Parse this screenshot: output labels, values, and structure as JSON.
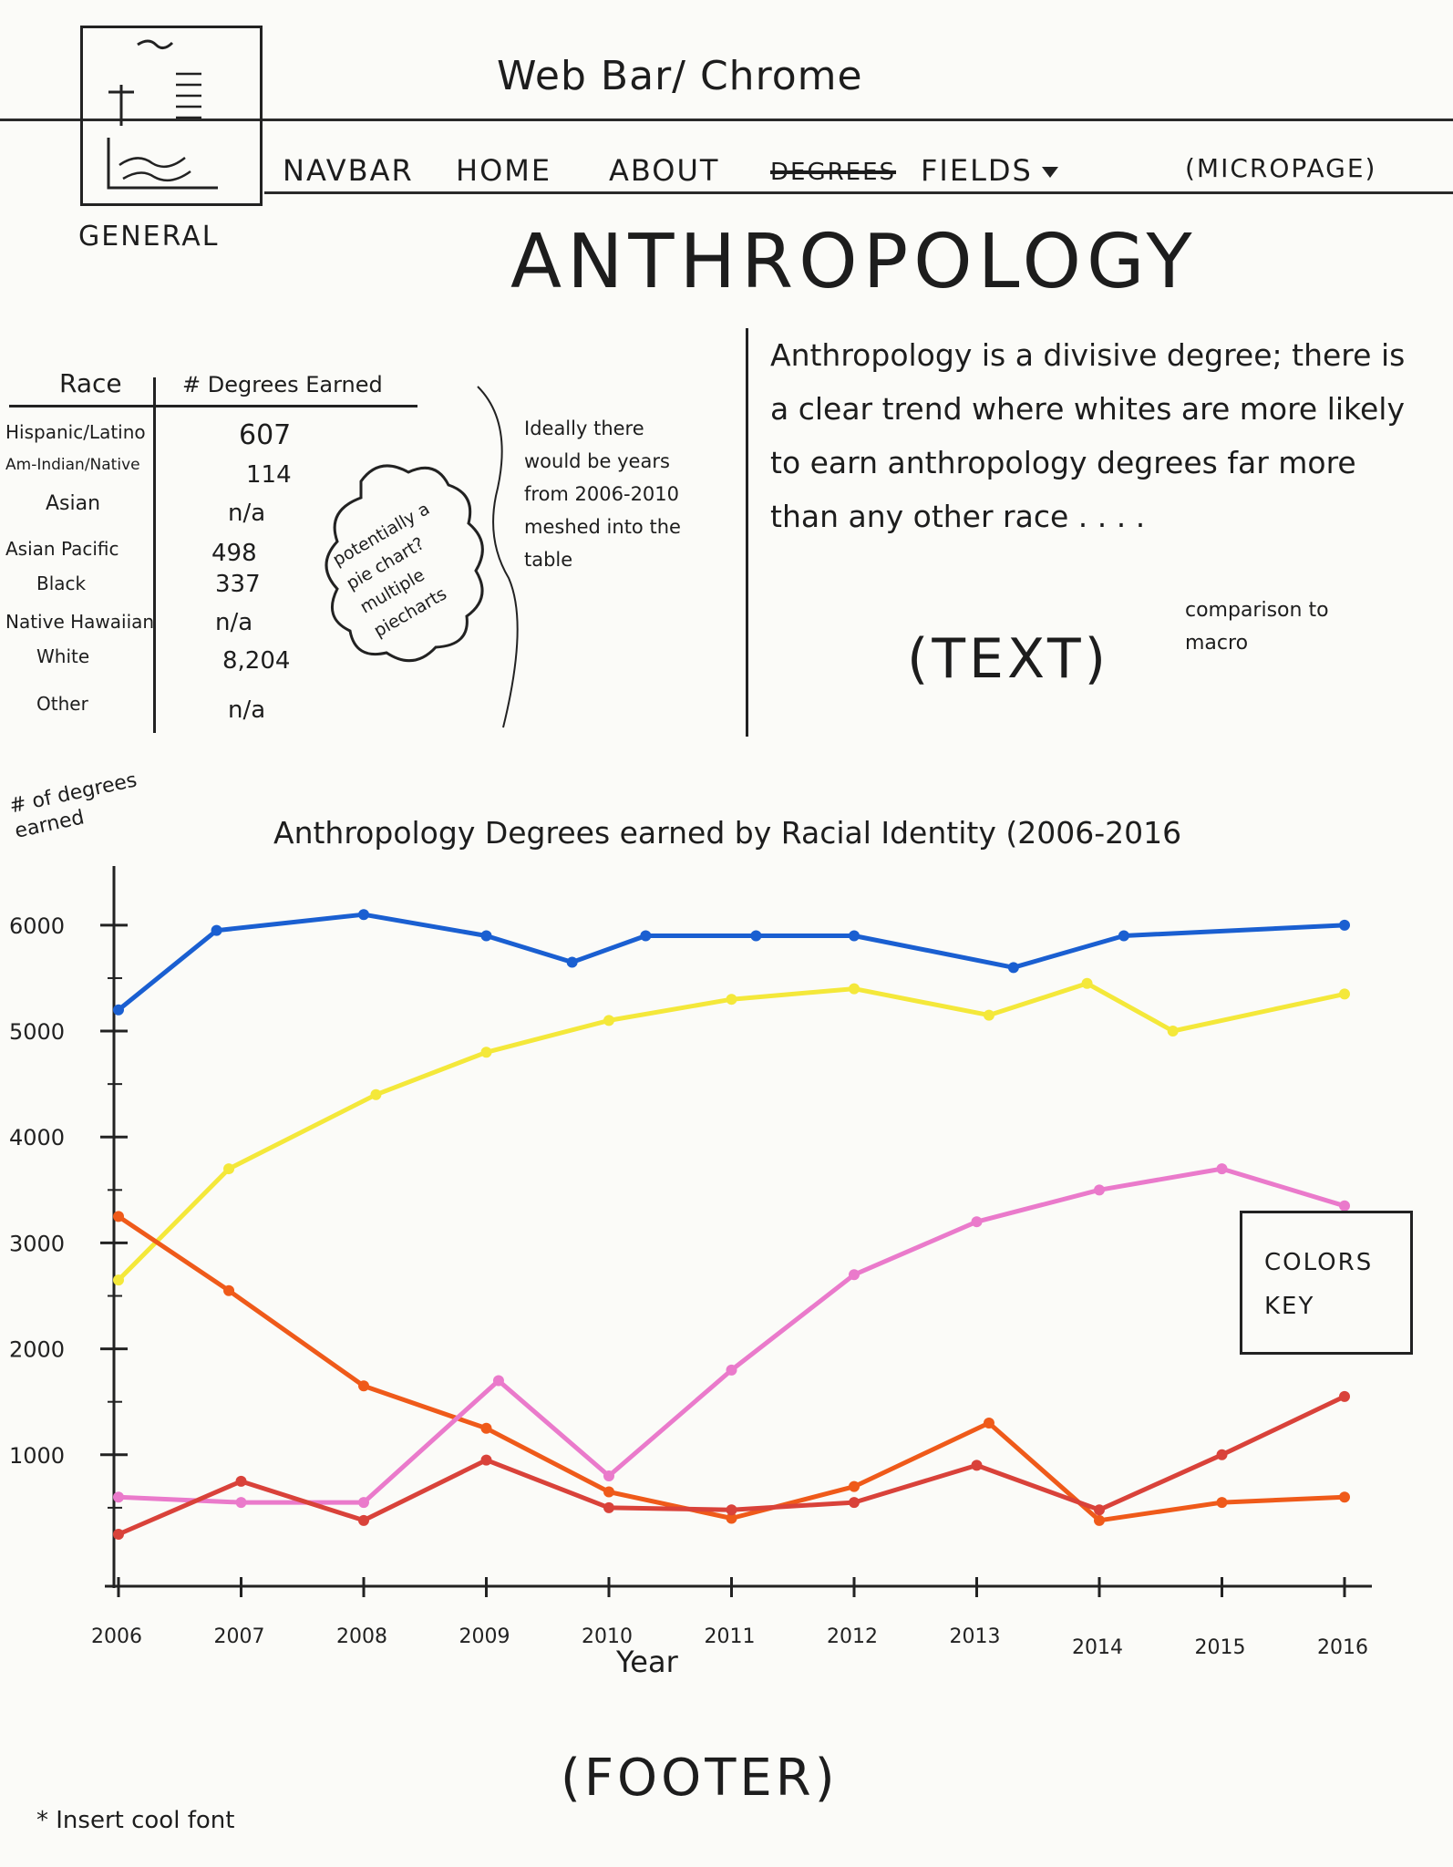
{
  "browser": {
    "label": "Web Bar/ Chrome"
  },
  "logo": {
    "caption": "GENERAL"
  },
  "navbar": {
    "label": "NAVBAR",
    "items": [
      {
        "label": "HOME"
      },
      {
        "label": "ABOUT"
      },
      {
        "label": "FIELDS",
        "struck": "DEGREES"
      }
    ],
    "right_label": "(MICROPAGE)"
  },
  "page": {
    "title": "ANTHROPOLOGY"
  },
  "table": {
    "headers": [
      "Race",
      "# Degrees Earned"
    ],
    "rows": [
      {
        "race": "Hispanic/Latino",
        "value": "607"
      },
      {
        "race": "Am-Indian/Native",
        "value": "114"
      },
      {
        "race": "Asian",
        "value": "n/a"
      },
      {
        "race": "Asian Pacific",
        "value": "498"
      },
      {
        "race": "Black",
        "value": "337"
      },
      {
        "race": "Native Hawaiian",
        "value": "n/a"
      },
      {
        "race": "White",
        "value": "8,204"
      },
      {
        "race": "Other",
        "value": "n/a"
      }
    ]
  },
  "cloud_note": "potentially a pie chart? multiple piecharts",
  "side_note": "Ideally there would be years from 2006-2010 meshed into the table",
  "description": "Anthropology is a divisive degree; there is a clear trend where whites are more likely to earn anthropology degrees far more than any other race . . . .",
  "text_tag": "(TEXT)",
  "comparison_note": "comparison to macro",
  "chart": {
    "y_caption": "# of degrees earned",
    "x_caption": "Year"
  },
  "chart_data": {
    "type": "line",
    "title": "Anthropology Degrees earned by Racial Identity (2006-2016",
    "xlabel": "Year",
    "ylabel": "# of degrees earned",
    "x": [
      2006,
      2007,
      2008,
      2009,
      2010,
      2011,
      2012,
      2013,
      2014,
      2015,
      2016
    ],
    "x_tick_labels": [
      "2006",
      "2007",
      "2008",
      "2009",
      "2010",
      "2011",
      "2012",
      "2013",
      "2014",
      "2015",
      "2016"
    ],
    "y_ticks": [
      1000,
      2000,
      3000,
      4000,
      5000,
      6000
    ],
    "ylim": [
      0,
      6300
    ],
    "series": [
      {
        "color": "#1a5fd1",
        "points": [
          [
            2006,
            5200
          ],
          [
            2006.8,
            5950
          ],
          [
            2008,
            6100
          ],
          [
            2009,
            5900
          ],
          [
            2009.7,
            5650
          ],
          [
            2010.3,
            5900
          ],
          [
            2011.2,
            5900
          ],
          [
            2012,
            5900
          ],
          [
            2013.3,
            5600
          ],
          [
            2014.2,
            5900
          ],
          [
            2016,
            6000
          ]
        ]
      },
      {
        "color": "#f4e83a",
        "points": [
          [
            2006,
            2650
          ],
          [
            2006.9,
            3700
          ],
          [
            2008.1,
            4400
          ],
          [
            2009,
            4800
          ],
          [
            2010,
            5100
          ],
          [
            2011,
            5300
          ],
          [
            2012,
            5400
          ],
          [
            2013.1,
            5150
          ],
          [
            2013.9,
            5450
          ],
          [
            2014.6,
            5000
          ],
          [
            2016,
            5350
          ]
        ]
      },
      {
        "color": "#ef5a1a",
        "points": [
          [
            2006,
            3250
          ],
          [
            2006.9,
            2550
          ],
          [
            2008,
            1650
          ],
          [
            2009,
            1250
          ],
          [
            2010,
            650
          ],
          [
            2011,
            400
          ],
          [
            2012,
            700
          ],
          [
            2013.1,
            1300
          ],
          [
            2014,
            380
          ],
          [
            2015,
            550
          ],
          [
            2016,
            600
          ]
        ]
      },
      {
        "color": "#ea7acb",
        "points": [
          [
            2006,
            600
          ],
          [
            2007,
            550
          ],
          [
            2008,
            550
          ],
          [
            2009.1,
            1700
          ],
          [
            2010,
            800
          ],
          [
            2011,
            1800
          ],
          [
            2012,
            2700
          ],
          [
            2013,
            3200
          ],
          [
            2014,
            3500
          ],
          [
            2015,
            3700
          ],
          [
            2016,
            3350
          ]
        ]
      },
      {
        "color": "#d9423a",
        "points": [
          [
            2006,
            250
          ],
          [
            2007,
            750
          ],
          [
            2008,
            380
          ],
          [
            2009,
            950
          ],
          [
            2010,
            500
          ],
          [
            2011,
            480
          ],
          [
            2012,
            550
          ],
          [
            2013,
            900
          ],
          [
            2014,
            480
          ],
          [
            2015,
            1000
          ],
          [
            2016,
            1550
          ]
        ]
      }
    ],
    "legend": {
      "label": "COLORS KEY",
      "position": "right"
    }
  },
  "footer": {
    "label": "(FOOTER)"
  },
  "footnote": "* Insert cool font"
}
